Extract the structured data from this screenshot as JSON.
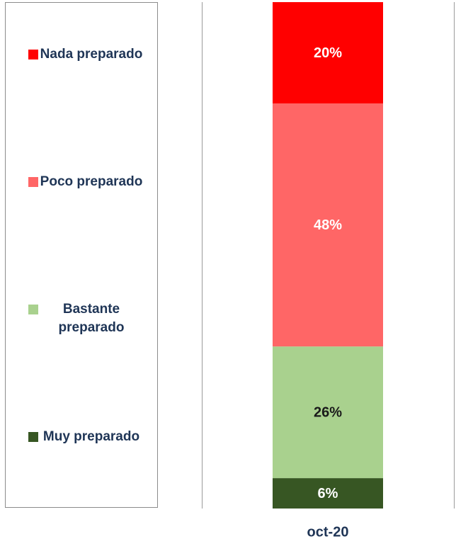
{
  "chart_data": {
    "type": "stacked_bar",
    "categories": [
      "oct-20"
    ],
    "ylim": [
      0,
      100
    ],
    "series": [
      {
        "name": "Muy preparado",
        "color": "#375623",
        "label_color": "#ffffff",
        "values": [
          6
        ],
        "value_labels": [
          "6%"
        ]
      },
      {
        "name": "Bastante preparado",
        "color": "#a9d18e",
        "label_color": "#1a1a1a",
        "values": [
          26
        ],
        "value_labels": [
          "26%"
        ]
      },
      {
        "name": "Poco preparado",
        "color": "#ff6666",
        "label_color": "#ffffff",
        "values": [
          48
        ],
        "value_labels": [
          "48%"
        ]
      },
      {
        "name": "Nada preparado",
        "color": "#ff0000",
        "label_color": "#ffffff",
        "values": [
          20
        ],
        "value_labels": [
          "20%"
        ]
      }
    ],
    "legend": "left"
  }
}
